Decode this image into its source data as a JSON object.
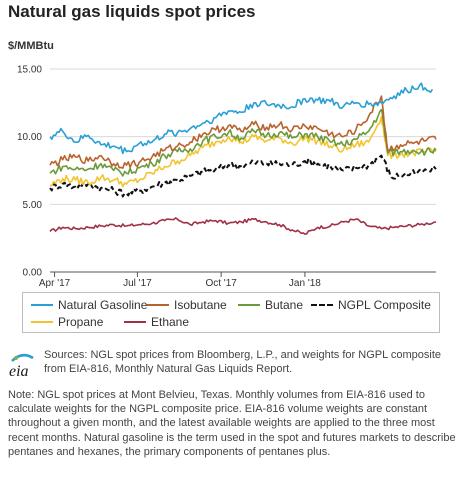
{
  "title": "Natural gas liquids spot prices",
  "unit_label": "$/MMBtu",
  "chart_data": {
    "type": "line",
    "title": "Natural gas liquids spot prices",
    "ylabel": "$/MMBtu",
    "ylim": [
      0,
      15
    ],
    "y_ticks": [
      "0.00",
      "5.00",
      "10.00",
      "15.00"
    ],
    "x_range": [
      "2017-03-27",
      "2018-05-25"
    ],
    "x_ticks": [
      {
        "label": "Apr '17",
        "date": "2017-04-01"
      },
      {
        "label": "Jul '17",
        "date": "2017-07-01"
      },
      {
        "label": "Oct '17",
        "date": "2017-10-01"
      },
      {
        "label": "Jan '18",
        "date": "2018-01-01"
      }
    ],
    "grid": "horizontal",
    "legend_position": "bottom",
    "series": [
      {
        "name": "Natural Gasoline",
        "color": "#2a9fd6",
        "dash": "solid",
        "points": [
          [
            "2017-03-27",
            10.0
          ],
          [
            "2017-04-10",
            10.4
          ],
          [
            "2017-04-24",
            9.6
          ],
          [
            "2017-05-08",
            10.1
          ],
          [
            "2017-05-22",
            9.4
          ],
          [
            "2017-06-05",
            9.3
          ],
          [
            "2017-06-19",
            8.9
          ],
          [
            "2017-07-03",
            9.5
          ],
          [
            "2017-07-17",
            9.6
          ],
          [
            "2017-07-31",
            10.2
          ],
          [
            "2017-08-14",
            10.3
          ],
          [
            "2017-08-28",
            10.6
          ],
          [
            "2017-09-11",
            11.0
          ],
          [
            "2017-09-25",
            11.4
          ],
          [
            "2017-10-09",
            11.9
          ],
          [
            "2017-10-23",
            11.8
          ],
          [
            "2017-11-06",
            12.5
          ],
          [
            "2017-11-20",
            12.4
          ],
          [
            "2017-12-04",
            12.3
          ],
          [
            "2017-12-18",
            12.2
          ],
          [
            "2018-01-01",
            12.8
          ],
          [
            "2018-01-15",
            12.7
          ],
          [
            "2018-01-29",
            12.6
          ],
          [
            "2018-02-12",
            12.2
          ],
          [
            "2018-02-26",
            12.5
          ],
          [
            "2018-03-12",
            12.4
          ],
          [
            "2018-03-26",
            12.5
          ],
          [
            "2018-04-09",
            13.0
          ],
          [
            "2018-04-23",
            13.4
          ],
          [
            "2018-05-07",
            13.8
          ],
          [
            "2018-05-21",
            13.5
          ]
        ]
      },
      {
        "name": "Isobutane",
        "color": "#b8632e",
        "dash": "solid",
        "points": [
          [
            "2017-03-27",
            7.9
          ],
          [
            "2017-04-10",
            8.3
          ],
          [
            "2017-04-24",
            8.5
          ],
          [
            "2017-05-08",
            8.2
          ],
          [
            "2017-05-22",
            8.6
          ],
          [
            "2017-06-05",
            8.0
          ],
          [
            "2017-06-19",
            7.9
          ],
          [
            "2017-07-03",
            8.1
          ],
          [
            "2017-07-17",
            8.5
          ],
          [
            "2017-07-31",
            9.0
          ],
          [
            "2017-08-14",
            9.3
          ],
          [
            "2017-08-28",
            9.6
          ],
          [
            "2017-09-11",
            10.2
          ],
          [
            "2017-09-25",
            10.5
          ],
          [
            "2017-10-09",
            10.8
          ],
          [
            "2017-10-23",
            10.4
          ],
          [
            "2017-11-06",
            10.9
          ],
          [
            "2017-11-20",
            10.7
          ],
          [
            "2017-12-04",
            10.9
          ],
          [
            "2017-12-18",
            10.5
          ],
          [
            "2018-01-01",
            10.8
          ],
          [
            "2018-01-15",
            10.6
          ],
          [
            "2018-01-29",
            10.2
          ],
          [
            "2018-02-12",
            10.0
          ],
          [
            "2018-02-26",
            10.5
          ],
          [
            "2018-03-12",
            11.5
          ],
          [
            "2018-03-26",
            13.0
          ],
          [
            "2018-04-02",
            9.0
          ],
          [
            "2018-04-16",
            9.4
          ],
          [
            "2018-04-30",
            9.5
          ],
          [
            "2018-05-14",
            9.7
          ],
          [
            "2018-05-25",
            9.8
          ]
        ]
      },
      {
        "name": "Butane",
        "color": "#6b9a3a",
        "dash": "solid",
        "points": [
          [
            "2017-03-27",
            7.3
          ],
          [
            "2017-04-10",
            7.8
          ],
          [
            "2017-04-24",
            7.6
          ],
          [
            "2017-05-08",
            7.6
          ],
          [
            "2017-05-22",
            8.0
          ],
          [
            "2017-06-05",
            7.5
          ],
          [
            "2017-06-19",
            7.3
          ],
          [
            "2017-07-03",
            7.7
          ],
          [
            "2017-07-17",
            8.0
          ],
          [
            "2017-07-31",
            8.6
          ],
          [
            "2017-08-14",
            8.9
          ],
          [
            "2017-08-28",
            9.1
          ],
          [
            "2017-09-11",
            9.7
          ],
          [
            "2017-09-25",
            10.0
          ],
          [
            "2017-10-09",
            10.3
          ],
          [
            "2017-10-23",
            9.9
          ],
          [
            "2017-11-06",
            10.4
          ],
          [
            "2017-11-20",
            10.1
          ],
          [
            "2017-12-04",
            10.3
          ],
          [
            "2017-12-18",
            9.9
          ],
          [
            "2018-01-01",
            10.2
          ],
          [
            "2018-01-15",
            10.0
          ],
          [
            "2018-01-29",
            9.6
          ],
          [
            "2018-02-12",
            9.4
          ],
          [
            "2018-02-26",
            9.8
          ],
          [
            "2018-03-12",
            10.4
          ],
          [
            "2018-03-26",
            12.0
          ],
          [
            "2018-04-02",
            8.8
          ],
          [
            "2018-04-16",
            8.9
          ],
          [
            "2018-04-30",
            9.0
          ],
          [
            "2018-05-14",
            8.9
          ],
          [
            "2018-05-25",
            9.0
          ]
        ]
      },
      {
        "name": "NGPL Composite",
        "color": "#111111",
        "dash": "dashed",
        "points": [
          [
            "2017-03-27",
            6.2
          ],
          [
            "2017-04-10",
            6.5
          ],
          [
            "2017-04-24",
            6.3
          ],
          [
            "2017-05-08",
            6.5
          ],
          [
            "2017-05-22",
            6.2
          ],
          [
            "2017-06-05",
            6.0
          ],
          [
            "2017-06-19",
            5.8
          ],
          [
            "2017-07-03",
            6.0
          ],
          [
            "2017-07-17",
            6.3
          ],
          [
            "2017-07-31",
            6.6
          ],
          [
            "2017-08-14",
            6.8
          ],
          [
            "2017-08-28",
            7.1
          ],
          [
            "2017-09-11",
            7.4
          ],
          [
            "2017-09-25",
            7.6
          ],
          [
            "2017-10-09",
            7.9
          ],
          [
            "2017-10-23",
            7.8
          ],
          [
            "2017-11-06",
            8.1
          ],
          [
            "2017-11-20",
            8.0
          ],
          [
            "2017-12-04",
            8.0
          ],
          [
            "2017-12-18",
            7.9
          ],
          [
            "2018-01-01",
            8.2
          ],
          [
            "2018-01-15",
            8.0
          ],
          [
            "2018-01-29",
            7.8
          ],
          [
            "2018-02-12",
            7.5
          ],
          [
            "2018-02-26",
            7.7
          ],
          [
            "2018-03-12",
            7.9
          ],
          [
            "2018-03-26",
            8.6
          ],
          [
            "2018-04-06",
            7.0
          ],
          [
            "2018-04-20",
            7.2
          ],
          [
            "2018-05-04",
            7.3
          ],
          [
            "2018-05-25",
            7.6
          ]
        ]
      },
      {
        "name": "Propane",
        "color": "#f4c430",
        "dash": "solid",
        "points": [
          [
            "2017-03-27",
            6.4
          ],
          [
            "2017-04-10",
            6.9
          ],
          [
            "2017-04-24",
            6.8
          ],
          [
            "2017-05-08",
            6.6
          ],
          [
            "2017-05-22",
            7.0
          ],
          [
            "2017-06-05",
            6.8
          ],
          [
            "2017-06-19",
            6.5
          ],
          [
            "2017-07-03",
            6.8
          ],
          [
            "2017-07-17",
            7.3
          ],
          [
            "2017-07-31",
            7.8
          ],
          [
            "2017-08-14",
            8.2
          ],
          [
            "2017-08-28",
            8.6
          ],
          [
            "2017-09-11",
            9.2
          ],
          [
            "2017-09-25",
            9.6
          ],
          [
            "2017-10-09",
            10.0
          ],
          [
            "2017-10-23",
            9.6
          ],
          [
            "2017-11-06",
            10.0
          ],
          [
            "2017-11-20",
            9.7
          ],
          [
            "2017-12-04",
            9.9
          ],
          [
            "2017-12-18",
            9.5
          ],
          [
            "2018-01-01",
            9.9
          ],
          [
            "2018-01-15",
            9.7
          ],
          [
            "2018-01-29",
            9.3
          ],
          [
            "2018-02-12",
            9.0
          ],
          [
            "2018-02-26",
            9.4
          ],
          [
            "2018-03-12",
            9.6
          ],
          [
            "2018-03-26",
            11.5
          ],
          [
            "2018-04-02",
            8.6
          ],
          [
            "2018-04-16",
            8.7
          ],
          [
            "2018-04-30",
            8.8
          ],
          [
            "2018-05-14",
            8.9
          ],
          [
            "2018-05-25",
            8.9
          ]
        ]
      },
      {
        "name": "Ethane",
        "color": "#a03048",
        "dash": "solid",
        "points": [
          [
            "2017-03-27",
            3.0
          ],
          [
            "2017-04-10",
            3.3
          ],
          [
            "2017-04-24",
            3.2
          ],
          [
            "2017-05-08",
            3.3
          ],
          [
            "2017-05-22",
            3.4
          ],
          [
            "2017-06-05",
            3.5
          ],
          [
            "2017-06-19",
            3.4
          ],
          [
            "2017-07-03",
            3.5
          ],
          [
            "2017-07-17",
            3.6
          ],
          [
            "2017-07-31",
            3.8
          ],
          [
            "2017-08-14",
            3.9
          ],
          [
            "2017-08-28",
            3.5
          ],
          [
            "2017-09-11",
            3.7
          ],
          [
            "2017-09-25",
            3.8
          ],
          [
            "2017-10-09",
            3.6
          ],
          [
            "2017-10-23",
            3.7
          ],
          [
            "2017-11-06",
            3.9
          ],
          [
            "2017-11-20",
            3.7
          ],
          [
            "2017-12-04",
            3.5
          ],
          [
            "2017-12-18",
            3.1
          ],
          [
            "2018-01-01",
            2.8
          ],
          [
            "2018-01-15",
            3.3
          ],
          [
            "2018-01-29",
            3.4
          ],
          [
            "2018-02-12",
            3.7
          ],
          [
            "2018-02-26",
            3.9
          ],
          [
            "2018-03-12",
            3.4
          ],
          [
            "2018-03-26",
            3.2
          ],
          [
            "2018-04-09",
            3.3
          ],
          [
            "2018-04-23",
            3.4
          ],
          [
            "2018-05-07",
            3.5
          ],
          [
            "2018-05-25",
            3.7
          ]
        ]
      }
    ]
  },
  "legend": {
    "items": [
      {
        "label": "Natural Gasoline",
        "color": "#2a9fd6",
        "dash": "solid"
      },
      {
        "label": "Isobutane",
        "color": "#b8632e",
        "dash": "solid"
      },
      {
        "label": "Butane",
        "color": "#6b9a3a",
        "dash": "solid"
      },
      {
        "label": "NGPL Composite",
        "color": "#111111",
        "dash": "dashed"
      },
      {
        "label": "Propane",
        "color": "#f4c430",
        "dash": "solid"
      },
      {
        "label": "Ethane",
        "color": "#a03048",
        "dash": "solid"
      }
    ]
  },
  "logo": {
    "text": "eia",
    "icon": "eia-logo"
  },
  "sources": "Sources: NGL spot prices from Bloomberg, L.P., and weights for NGPL composite from EIA-816, Monthly Natural Gas Liquids Report.",
  "note": "Note: NGL spot prices at Mont Belvieu, Texas. Monthly volumes from EIA-816 used to calculate weights for the NGPL composite price. EIA-816 volume weights are constant throughout a given month, and the latest available weights are applied to the three most recent months. Natural gasoline is the term used in the spot and futures markets to describe pentanes and hexanes, the primary components of pentanes plus."
}
